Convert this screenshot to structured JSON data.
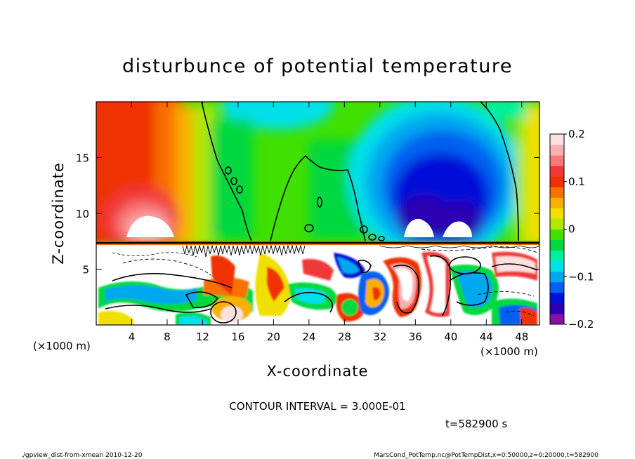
{
  "chart_data": {
    "type": "heatmap",
    "title": "disturbunce of potential temperature",
    "xlabel": "X-coordinate",
    "ylabel": "Z-coordinate",
    "x_unit_left": "(×1000 m)",
    "x_unit_right": "(×1000 m)",
    "xlim": [
      0,
      50
    ],
    "ylim": [
      0,
      20
    ],
    "x_ticks": [
      "4",
      "8",
      "12",
      "16",
      "20",
      "24",
      "28",
      "32",
      "36",
      "40",
      "44",
      "48"
    ],
    "x_tick_values": [
      4,
      8,
      12,
      16,
      20,
      24,
      28,
      32,
      36,
      40,
      44,
      48
    ],
    "y_ticks": [
      "5",
      "10",
      "15"
    ],
    "y_tick_values": [
      5,
      10,
      15
    ],
    "colorbar": {
      "min": -0.2,
      "max": 0.2,
      "tick_labels": [
        "0.2",
        "0.1",
        "0",
        "−0.1",
        "−0.2"
      ],
      "tick_values": [
        0.2,
        0.1,
        0,
        -0.1,
        -0.2
      ],
      "colors": [
        "#8a0fa6",
        "#2a00b0",
        "#0010d8",
        "#0060f0",
        "#00a8f0",
        "#00e0e8",
        "#00f0a0",
        "#00d840",
        "#40e000",
        "#b0e800",
        "#f0e000",
        "#f8b000",
        "#f87000",
        "#f03000",
        "#f03838",
        "#f87878",
        "#f8b0b0",
        "#fde0e0"
      ]
    },
    "contour_interval_text": "CONTOUR INTERVAL = 3.000E-01",
    "time_text": "t=582900 s"
  },
  "footer": {
    "left": "./gpview_dist-from-xmean  2010-12-20",
    "right": "MarsCond_PotTemp.nc@PotTempDist,x=0:50000,z=0:20000,t=582900"
  }
}
